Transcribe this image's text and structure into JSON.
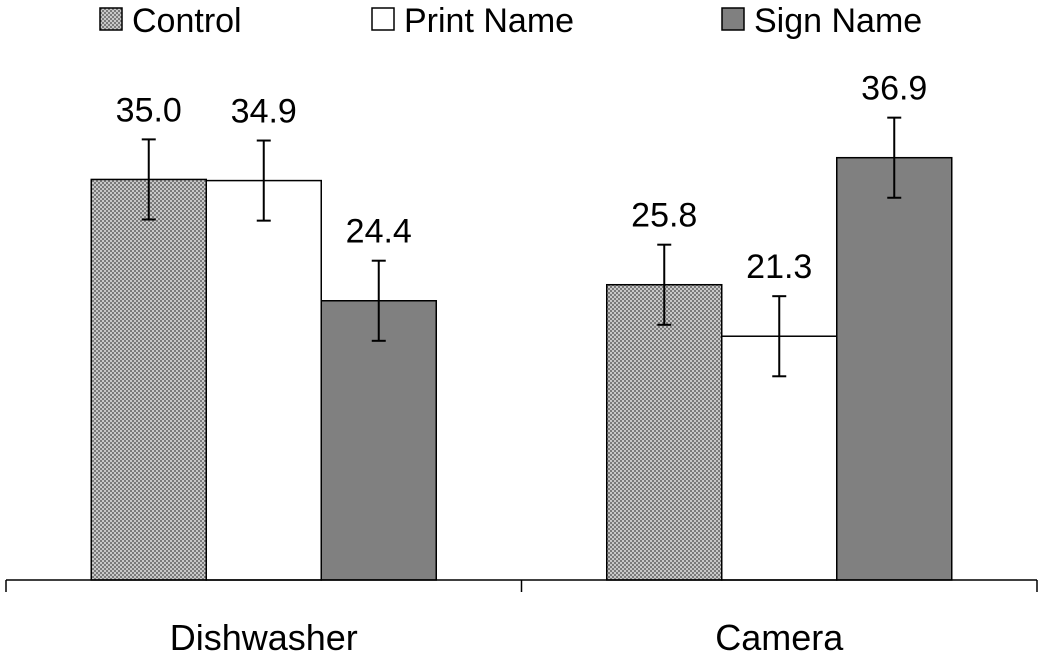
{
  "chart_data": {
    "type": "bar",
    "categories": [
      "Dishwasher",
      "Camera"
    ],
    "series": [
      {
        "name": "Control",
        "values": [
          35.0,
          25.8
        ],
        "labels": [
          "35.0",
          "25.8"
        ],
        "errors": [
          3.5,
          3.5
        ],
        "pattern": "checker",
        "color": "#b0b0b0"
      },
      {
        "name": "Print Name",
        "values": [
          34.9,
          21.3
        ],
        "labels": [
          "34.9",
          "21.3"
        ],
        "errors": [
          3.5,
          3.5
        ],
        "pattern": "solid",
        "color": "#ffffff"
      },
      {
        "name": "Sign Name",
        "values": [
          24.4,
          36.9
        ],
        "labels": [
          "24.4",
          "36.9"
        ],
        "errors": [
          3.5,
          3.5
        ],
        "pattern": "solid",
        "color": "#808080"
      }
    ],
    "ylim": [
      0,
      45
    ],
    "legend_position": "top",
    "grid": false,
    "error_bars": true
  }
}
